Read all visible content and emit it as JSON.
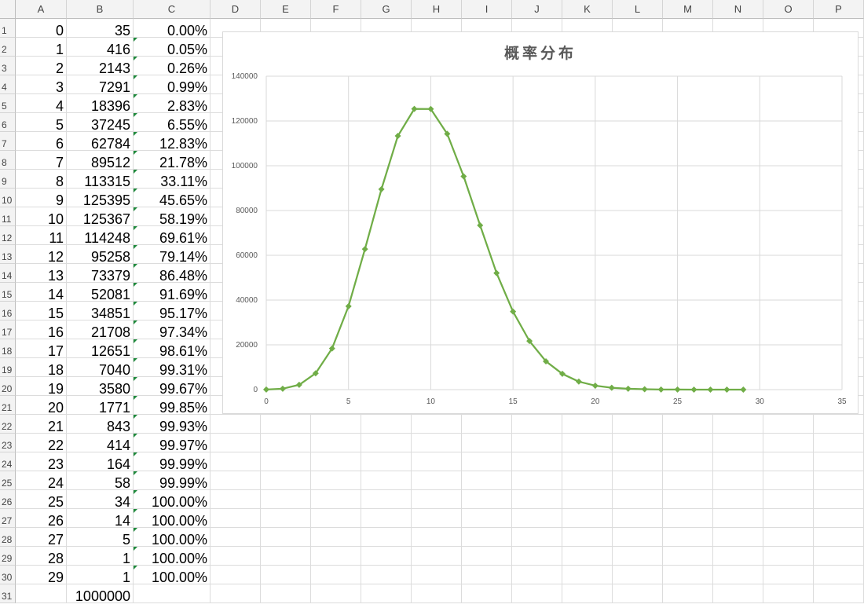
{
  "columns": [
    "A",
    "B",
    "C",
    "D",
    "E",
    "F",
    "G",
    "H",
    "I",
    "J",
    "K",
    "L",
    "M",
    "N",
    "O",
    "P"
  ],
  "rows": [
    "1",
    "2",
    "3",
    "4",
    "5",
    "6",
    "7",
    "8",
    "9",
    "10",
    "11",
    "12",
    "13",
    "14",
    "15",
    "16",
    "17",
    "18",
    "19",
    "20",
    "21",
    "22",
    "23",
    "24",
    "25",
    "26",
    "27",
    "28",
    "29",
    "30",
    "31"
  ],
  "table": [
    [
      "0",
      "35",
      "0.00%"
    ],
    [
      "1",
      "416",
      "0.05%"
    ],
    [
      "2",
      "2143",
      "0.26%"
    ],
    [
      "3",
      "7291",
      "0.99%"
    ],
    [
      "4",
      "18396",
      "2.83%"
    ],
    [
      "5",
      "37245",
      "6.55%"
    ],
    [
      "6",
      "62784",
      "12.83%"
    ],
    [
      "7",
      "89512",
      "21.78%"
    ],
    [
      "8",
      "113315",
      "33.11%"
    ],
    [
      "9",
      "125395",
      "45.65%"
    ],
    [
      "10",
      "125367",
      "58.19%"
    ],
    [
      "11",
      "114248",
      "69.61%"
    ],
    [
      "12",
      "95258",
      "79.14%"
    ],
    [
      "13",
      "73379",
      "86.48%"
    ],
    [
      "14",
      "52081",
      "91.69%"
    ],
    [
      "15",
      "34851",
      "95.17%"
    ],
    [
      "16",
      "21708",
      "97.34%"
    ],
    [
      "17",
      "12651",
      "98.61%"
    ],
    [
      "18",
      "7040",
      "99.31%"
    ],
    [
      "19",
      "3580",
      "99.67%"
    ],
    [
      "20",
      "1771",
      "99.85%"
    ],
    [
      "21",
      "843",
      "99.93%"
    ],
    [
      "22",
      "414",
      "99.97%"
    ],
    [
      "23",
      "164",
      "99.99%"
    ],
    [
      "24",
      "58",
      "99.99%"
    ],
    [
      "25",
      "34",
      "100.00%"
    ],
    [
      "26",
      "14",
      "100.00%"
    ],
    [
      "27",
      "5",
      "100.00%"
    ],
    [
      "28",
      "1",
      "100.00%"
    ],
    [
      "29",
      "1",
      "100.00%"
    ],
    [
      "",
      "1000000",
      ""
    ]
  ],
  "chart_data": {
    "type": "scatter",
    "title": "概率分布",
    "xlim": [
      0,
      35
    ],
    "ylim": [
      0,
      140000
    ],
    "x_ticks": [
      0,
      5,
      10,
      15,
      20,
      25,
      30,
      35
    ],
    "y_ticks": [
      0,
      20000,
      40000,
      60000,
      80000,
      100000,
      120000,
      140000
    ],
    "grid": true,
    "color": "#70ad47",
    "marker": "diamond",
    "line": "smooth",
    "x": [
      0,
      1,
      2,
      3,
      4,
      5,
      6,
      7,
      8,
      9,
      10,
      11,
      12,
      13,
      14,
      15,
      16,
      17,
      18,
      19,
      20,
      21,
      22,
      23,
      24,
      25,
      26,
      27,
      28,
      29
    ],
    "y": [
      35,
      416,
      2143,
      7291,
      18396,
      37245,
      62784,
      89512,
      113315,
      125395,
      125367,
      114248,
      95258,
      73379,
      52081,
      34851,
      21708,
      12651,
      7040,
      3580,
      1771,
      843,
      414,
      164,
      58,
      34,
      14,
      5,
      1,
      1
    ]
  }
}
